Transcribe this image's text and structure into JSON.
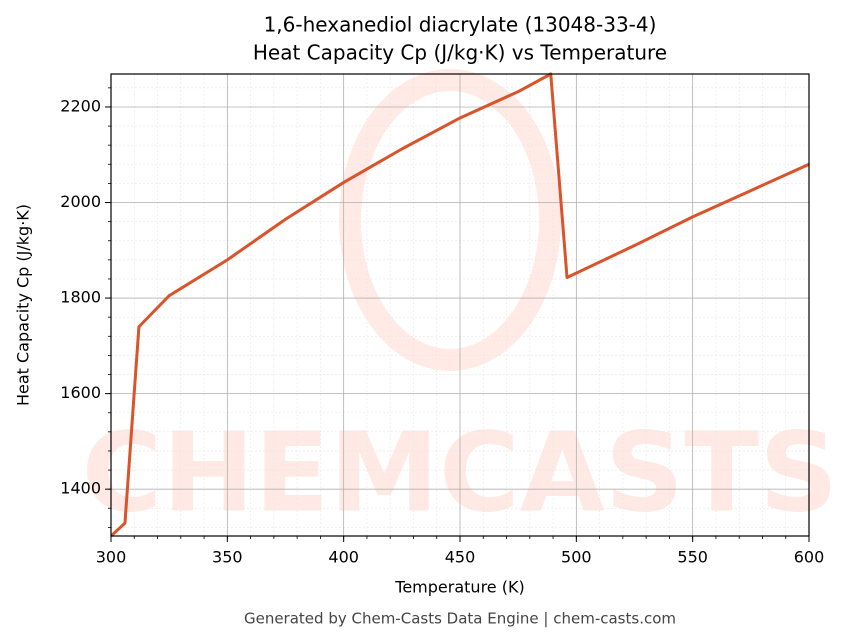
{
  "chart_data": {
    "type": "line",
    "title": "1,6-hexanediol diacrylate (13048-33-4)",
    "subtitle": "Heat Capacity Cp (J/kg·K) vs Temperature",
    "x_label": "Temperature (K)",
    "y_label": "Heat Capacity Cp (J/kg·K)",
    "footer": "Generated by Chem-Casts Data Engine | chem-casts.com",
    "watermark": "CHEMCASTS",
    "x": [
      300,
      306,
      312,
      325,
      350,
      375,
      400,
      425,
      450,
      475,
      489,
      496,
      525,
      550,
      575,
      600
    ],
    "series": [
      {
        "name": "Cp",
        "color": "#d9542b",
        "values": [
          1302,
          1329,
          1740,
          1805,
          1880,
          1965,
          2042,
          2112,
          2177,
          2232,
          2269,
          1843,
          1910,
          1970,
          2025,
          2080
        ]
      }
    ],
    "xlim": [
      300,
      600
    ],
    "xticks": [
      300,
      350,
      400,
      450,
      500,
      550,
      600
    ],
    "ylim": [
      1302,
      2269
    ],
    "yticks": [
      1400,
      1600,
      1800,
      2000,
      2200
    ],
    "grid": true,
    "minor_grid": true
  }
}
